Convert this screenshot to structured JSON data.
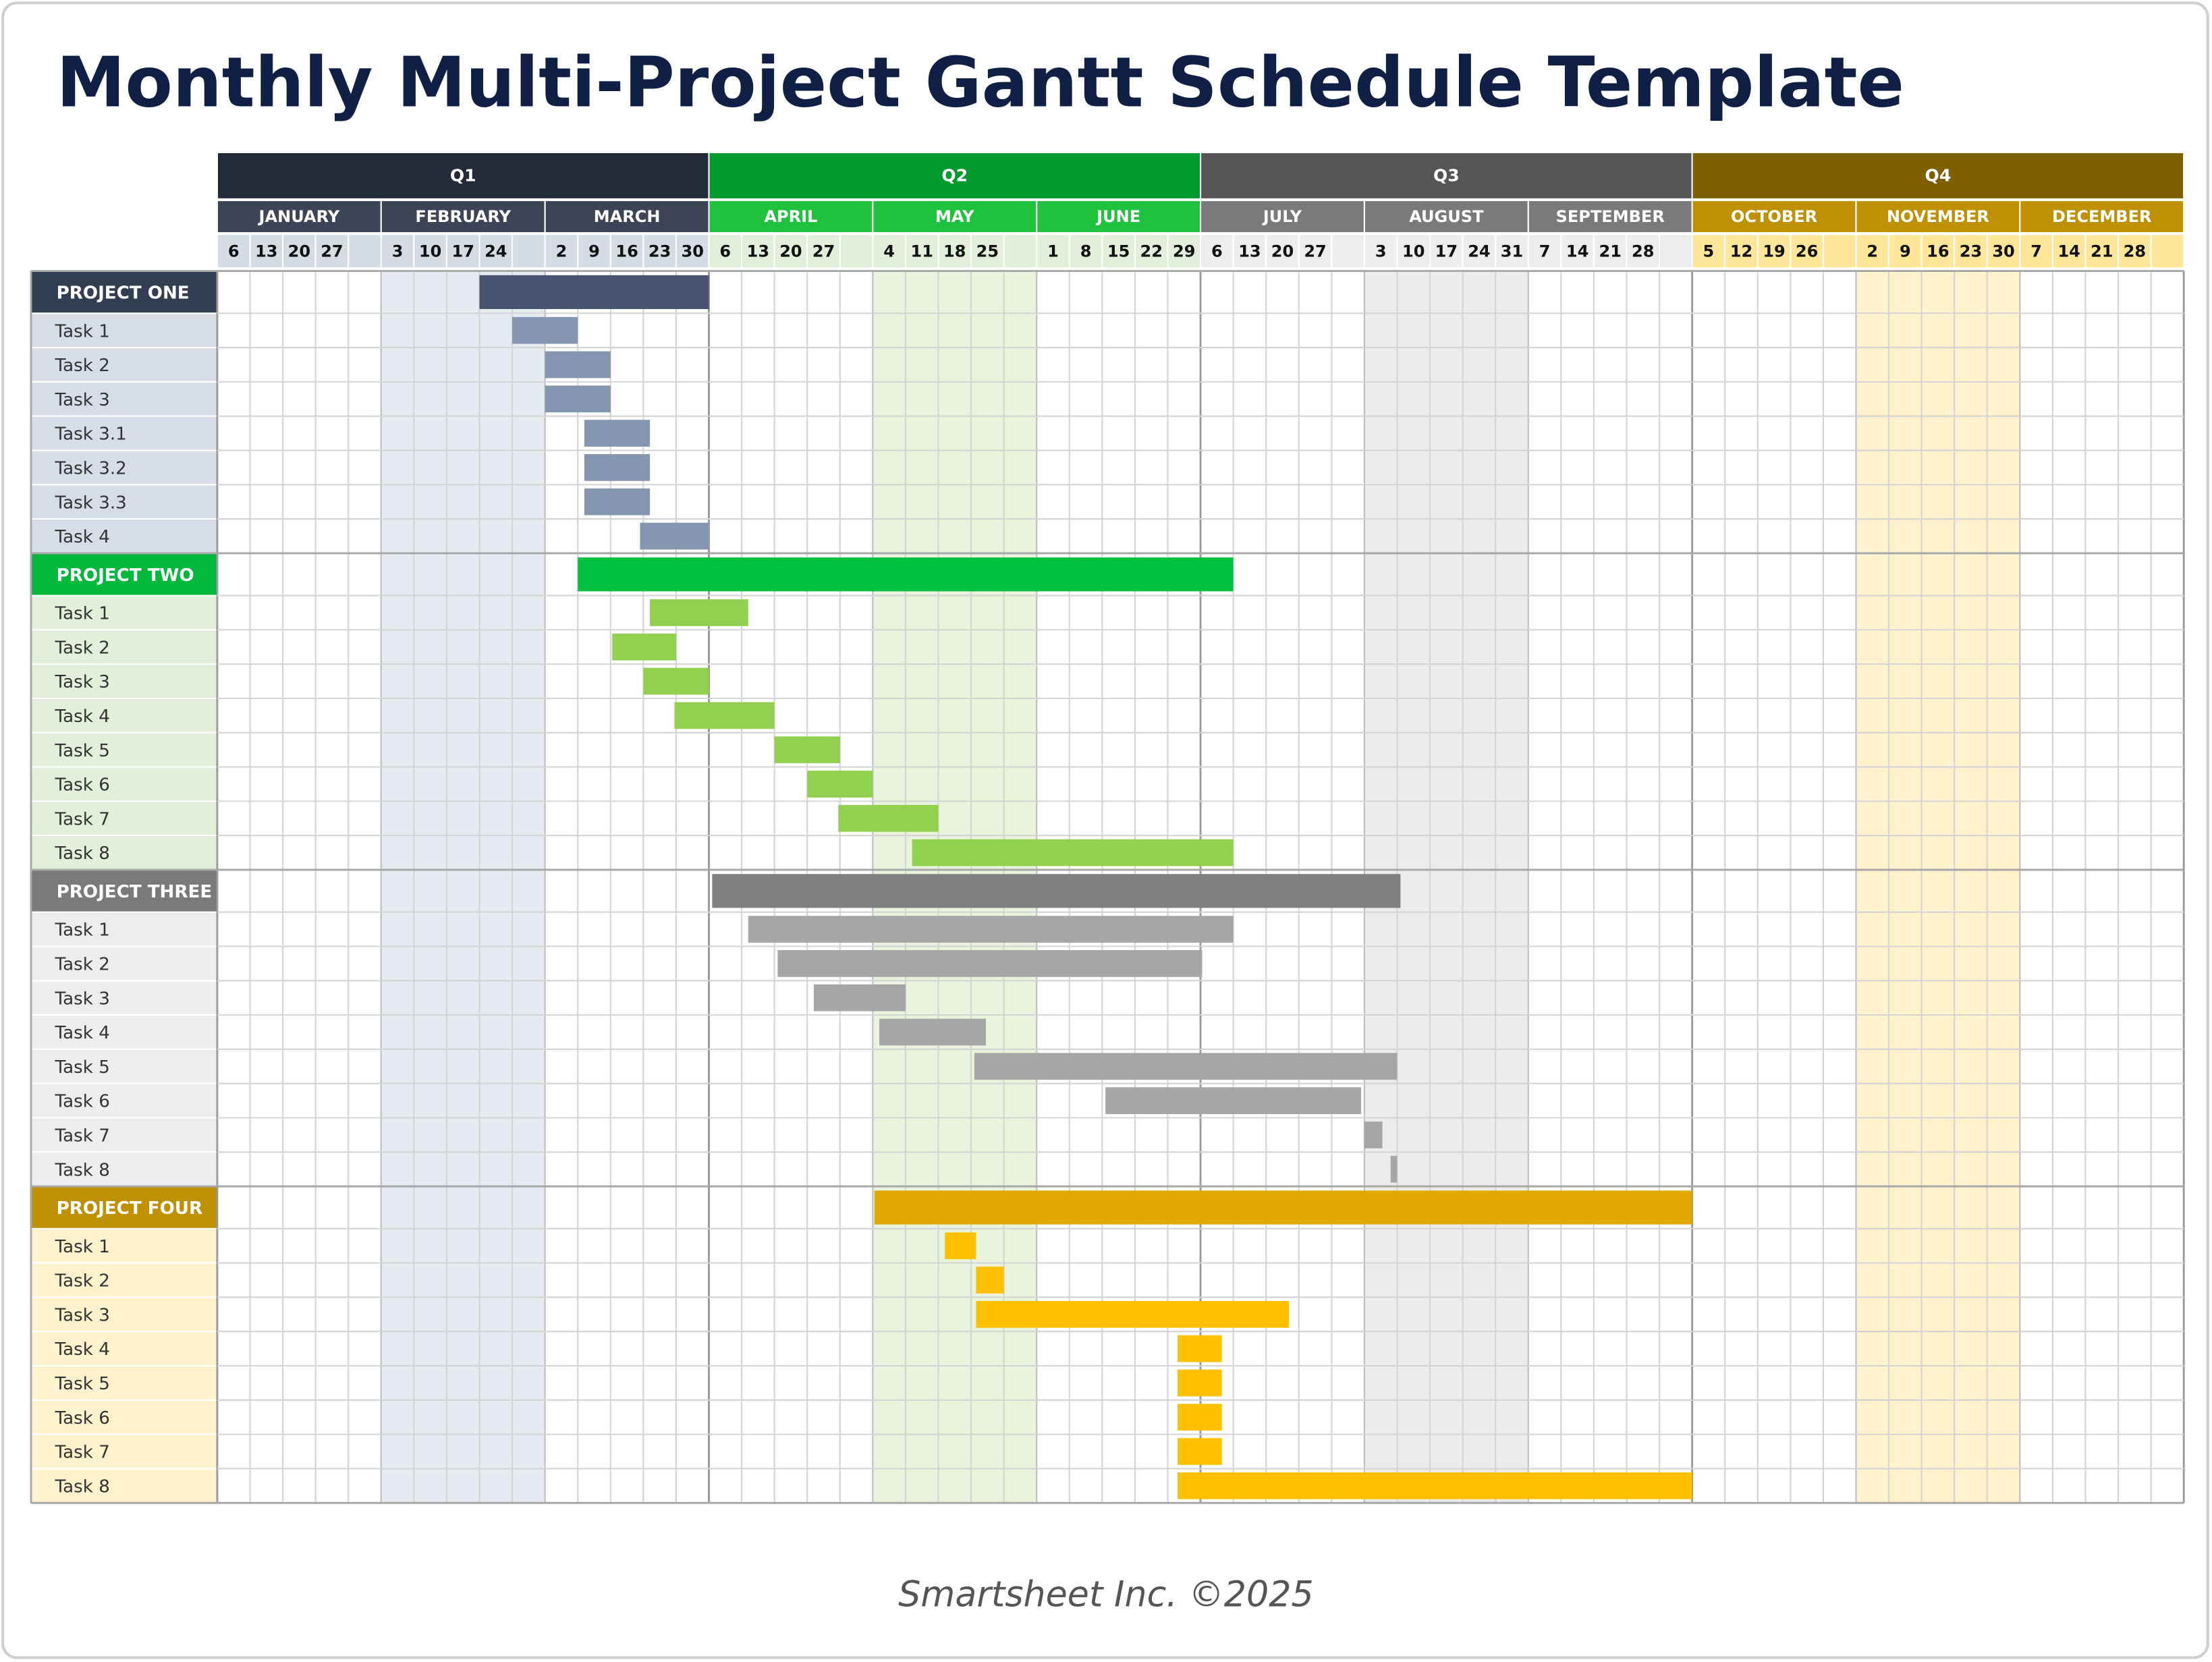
{
  "header": {
    "title": "Monthly Multi-Project Gantt Schedule Template"
  },
  "timeline": {
    "quarters": [
      {
        "label": "Q1",
        "color": "#222b3a",
        "month_color": "#3c4556",
        "week_color": "#d6dce4",
        "shade_color": "#e6ebf1",
        "months": [
          {
            "label": "JANUARY",
            "weeks": [
              6,
              13,
              20,
              27,
              null
            ]
          },
          {
            "label": "FEBRUARY",
            "shaded": true,
            "weeks": [
              3,
              10,
              17,
              24,
              null
            ]
          },
          {
            "label": "MARCH",
            "weeks": [
              2,
              9,
              16,
              23,
              30
            ]
          }
        ]
      },
      {
        "label": "Q2",
        "color": "#009a2e",
        "month_color": "#1fc23d",
        "week_color": "#e2efda",
        "shade_color": "#eaf4dd",
        "months": [
          {
            "label": "APRIL",
            "weeks": [
              6,
              13,
              20,
              27,
              null
            ]
          },
          {
            "label": "MAY",
            "shaded": true,
            "weeks": [
              4,
              11,
              18,
              25,
              null
            ]
          },
          {
            "label": "JUNE",
            "weeks": [
              1,
              8,
              15,
              22,
              29
            ]
          }
        ]
      },
      {
        "label": "Q3",
        "color": "#555555",
        "month_color": "#7a7a7a",
        "week_color": "#ededed",
        "shade_color": "#ececec",
        "months": [
          {
            "label": "JULY",
            "weeks": [
              6,
              13,
              20,
              27,
              null
            ]
          },
          {
            "label": "AUGUST",
            "shaded": true,
            "weeks": [
              3,
              10,
              17,
              24,
              31
            ]
          },
          {
            "label": "SEPTEMBER",
            "weeks": [
              7,
              14,
              21,
              28,
              null
            ]
          }
        ]
      },
      {
        "label": "Q4",
        "color": "#7f6000",
        "month_color": "#bf9000",
        "week_color": "#ffe699",
        "shade_color": "#fff2cc",
        "months": [
          {
            "label": "OCTOBER",
            "weeks": [
              5,
              12,
              19,
              26,
              null
            ]
          },
          {
            "label": "NOVEMBER",
            "shaded": true,
            "weeks": [
              2,
              9,
              16,
              23,
              30
            ]
          },
          {
            "label": "DECEMBER",
            "weeks": [
              7,
              14,
              21,
              28,
              null
            ]
          }
        ]
      }
    ]
  },
  "projects": [
    {
      "name": "PROJECT ONE",
      "label_color": "#323e52",
      "task_label_color": "#d6dde6",
      "bar_color": "#46546e",
      "task_bar_color": "#8496b0",
      "start": 8,
      "end": 15,
      "tasks": [
        {
          "name": "Task 1",
          "start": 9,
          "end": 11
        },
        {
          "name": "Task 2",
          "start": 10,
          "end": 12
        },
        {
          "name": "Task 3",
          "start": 10,
          "end": 12
        },
        {
          "name": "Task 3.1",
          "start": 11.2,
          "end": 13.2
        },
        {
          "name": "Task 3.2",
          "start": 11.2,
          "end": 13.2
        },
        {
          "name": "Task 3.3",
          "start": 11.2,
          "end": 13.2
        },
        {
          "name": "Task 4",
          "start": 12.9,
          "end": 15
        }
      ]
    },
    {
      "name": "PROJECT TWO",
      "label_color": "#00b83c",
      "task_label_color": "#e2efda",
      "bar_color": "#00c040",
      "task_bar_color": "#92d050",
      "start": 11,
      "end": 31,
      "tasks": [
        {
          "name": "Task 1",
          "start": 13.2,
          "end": 16.2
        },
        {
          "name": "Task 2",
          "start": 12.05,
          "end": 14
        },
        {
          "name": "Task 3",
          "start": 13,
          "end": 15
        },
        {
          "name": "Task 4",
          "start": 13.95,
          "end": 17
        },
        {
          "name": "Task 5",
          "start": 17,
          "end": 19
        },
        {
          "name": "Task 6",
          "start": 18,
          "end": 20
        },
        {
          "name": "Task 7",
          "start": 18.95,
          "end": 22
        },
        {
          "name": "Task 8",
          "start": 21.2,
          "end": 31
        }
      ]
    },
    {
      "name": "PROJECT THREE",
      "label_color": "#7a7a7a",
      "task_label_color": "#ededed",
      "bar_color": "#7f7f7f",
      "task_bar_color": "#a6a6a6",
      "start": 15.1,
      "end": 36.1,
      "tasks": [
        {
          "name": "Task 1",
          "start": 16.2,
          "end": 31
        },
        {
          "name": "Task 2",
          "start": 17.1,
          "end": 30.05
        },
        {
          "name": "Task 3",
          "start": 18.2,
          "end": 21
        },
        {
          "name": "Task 4",
          "start": 20.2,
          "end": 23.45
        },
        {
          "name": "Task 5",
          "start": 23.1,
          "end": 36
        },
        {
          "name": "Task 6",
          "start": 27.1,
          "end": 34.9
        },
        {
          "name": "Task 7",
          "start": 35,
          "end": 35.55
        },
        {
          "name": "Task 8",
          "start": 35.8,
          "end": 36
        }
      ]
    },
    {
      "name": "PROJECT FOUR",
      "label_color": "#bf9000",
      "task_label_color": "#fff2cc",
      "bar_color": "#e0a800",
      "task_bar_color": "#ffc000",
      "start": 20.05,
      "end": 45,
      "tasks": [
        {
          "name": "Task 1",
          "start": 22.2,
          "end": 23.15
        },
        {
          "name": "Task 2",
          "start": 23.15,
          "end": 24
        },
        {
          "name": "Task 3",
          "start": 23.15,
          "end": 32.7
        },
        {
          "name": "Task 4",
          "start": 29.3,
          "end": 30.65
        },
        {
          "name": "Task 5",
          "start": 29.3,
          "end": 30.65
        },
        {
          "name": "Task 6",
          "start": 29.3,
          "end": 30.65
        },
        {
          "name": "Task 7",
          "start": 29.3,
          "end": 30.65
        },
        {
          "name": "Task 8",
          "start": 29.3,
          "end": 45
        }
      ]
    }
  ],
  "footer": "Smartsheet Inc. ©2025"
}
